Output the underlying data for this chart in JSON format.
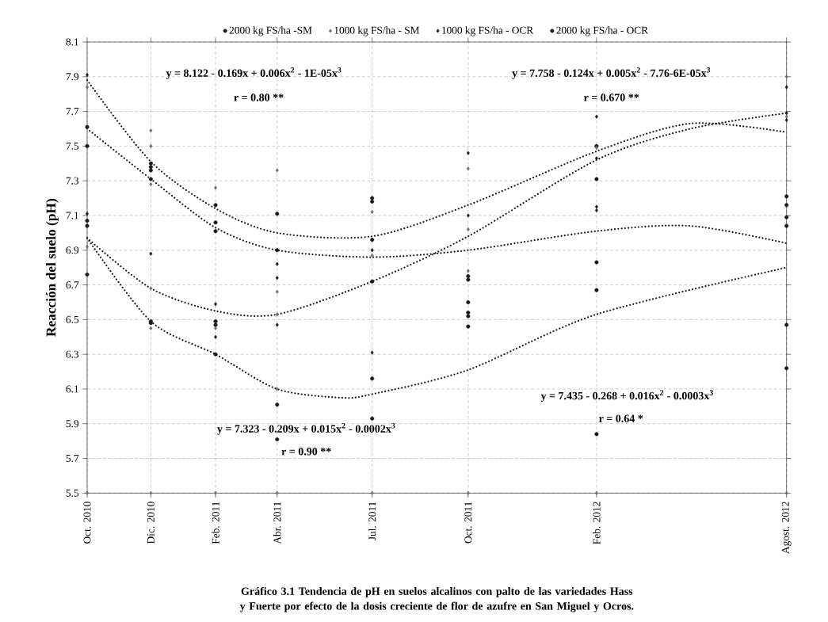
{
  "chart_data": {
    "type": "scatter",
    "ylabel": "Reacción del suelo (pH)",
    "xlim": [
      "2010-10",
      "2012-08"
    ],
    "xticks": [
      {
        "value": "2010-10",
        "label": "Oct. 2010"
      },
      {
        "value": "2010-12",
        "label": "Dic. 2010"
      },
      {
        "value": "2011-02",
        "label": "Feb. 2011"
      },
      {
        "value": "2011-04",
        "label": "Abr. 2011"
      },
      {
        "value": "2011-07",
        "label": "Jul. 2011"
      },
      {
        "value": "2011-10",
        "label": "Oct. 2011"
      },
      {
        "value": "2012-02",
        "label": "Feb. 2012"
      },
      {
        "value": "2012-08",
        "label": "Agost. 2012"
      }
    ],
    "ylim": [
      5.5,
      8.1
    ],
    "yticks": [
      5.5,
      5.7,
      5.9,
      6.1,
      6.3,
      6.5,
      6.7,
      6.9,
      7.1,
      7.3,
      7.5,
      7.7,
      7.9,
      8.1
    ],
    "grid": true,
    "legend": "top",
    "series": [
      {
        "name": "2000 kg FS/ha -SM",
        "marker": "circle",
        "color": "#1a1a1a",
        "x": [
          "2010-10",
          "2010-10",
          "2010-12",
          "2010-12",
          "2010-12",
          "2011-02",
          "2011-02",
          "2011-04",
          "2011-04",
          "2011-07",
          "2011-07",
          "2011-10",
          "2011-10",
          "2012-02",
          "2012-02",
          "2012-08",
          "2012-08"
        ],
        "values": [
          7.61,
          7.5,
          7.4,
          7.38,
          7.36,
          7.16,
          7.06,
          7.11,
          6.9,
          7.2,
          6.96,
          6.75,
          6.73,
          7.5,
          7.31,
          7.21,
          7.16
        ]
      },
      {
        "name": "1000 kg FS/ha - SM",
        "marker": "diamond",
        "color": "#6e6e6e",
        "x": [
          "2010-10",
          "2010-10",
          "2010-12",
          "2010-12",
          "2010-12",
          "2010-12",
          "2010-12",
          "2011-02",
          "2011-02",
          "2011-04",
          "2011-04",
          "2011-04",
          "2011-04",
          "2011-07",
          "2011-07",
          "2011-10",
          "2011-10",
          "2011-10",
          "2012-02",
          "2012-08",
          "2012-08"
        ],
        "values": [
          7.84,
          6.92,
          7.59,
          7.5,
          7.28,
          6.68,
          6.45,
          7.26,
          6.45,
          7.36,
          6.66,
          6.53,
          6.1,
          7.12,
          6.87,
          7.37,
          7.02,
          6.78,
          7.49,
          7.9,
          7.67
        ]
      },
      {
        "name": "1000 kg FS/ha - OCR",
        "marker": "diamond",
        "color": "#1a1a1a",
        "x": [
          "2010-10",
          "2010-10",
          "2010-12",
          "2011-02",
          "2011-02",
          "2011-04",
          "2011-04",
          "2011-04",
          "2011-07",
          "2011-07",
          "2011-10",
          "2011-10",
          "2012-02",
          "2012-02",
          "2012-02",
          "2012-02",
          "2012-08",
          "2012-08",
          "2012-08"
        ],
        "values": [
          7.91,
          7.11,
          6.88,
          6.59,
          6.4,
          6.82,
          6.74,
          6.47,
          6.9,
          6.31,
          7.46,
          7.1,
          7.67,
          7.43,
          7.15,
          7.13,
          7.84,
          7.69,
          7.65
        ]
      },
      {
        "name": "2000 kg FS/ha - OCR",
        "marker": "circle",
        "color": "#1a1a1a",
        "x": [
          "2010-10",
          "2010-10",
          "2010-10",
          "2010-12",
          "2010-12",
          "2010-12",
          "2011-02",
          "2011-02",
          "2011-02",
          "2011-02",
          "2011-04",
          "2011-04",
          "2011-07",
          "2011-07",
          "2011-07",
          "2011-07",
          "2011-10",
          "2011-10",
          "2011-10",
          "2011-10",
          "2012-02",
          "2012-02",
          "2012-02",
          "2012-08",
          "2012-08",
          "2012-08",
          "2012-08"
        ],
        "values": [
          7.07,
          7.04,
          6.76,
          7.31,
          6.49,
          6.48,
          7.01,
          6.49,
          6.47,
          6.3,
          6.01,
          5.81,
          7.18,
          6.72,
          6.16,
          5.93,
          6.6,
          6.54,
          6.52,
          6.46,
          6.83,
          6.67,
          5.84,
          7.09,
          7.04,
          6.47,
          6.22
        ]
      },
      {
        "marker": "diamond",
        "color": "#6e6e6e",
        "x": [
          "2010-10",
          "2010-12",
          "2011-02",
          "2011-04",
          "2011-07",
          "2011-10",
          "2012-02",
          "2012-08"
        ],
        "values": [
          5.5,
          5.5,
          5.5,
          5.5,
          5.5,
          5.5,
          5.5,
          5.5
        ]
      },
      {
        "type": "line",
        "line_style": "dotted",
        "marker": "none",
        "color": "#1a1a1a",
        "x": [
          "2010-10",
          "2010-12",
          "2011-02",
          "2011-04",
          "2011-07",
          "2011-10",
          "2012-02",
          "2012-05",
          "2012-08"
        ],
        "values": [
          7.88,
          7.41,
          7.14,
          7.0,
          6.98,
          7.16,
          7.47,
          7.63,
          7.58
        ]
      },
      {
        "type": "line",
        "line_style": "dotted",
        "marker": "none",
        "color": "#1a1a1a",
        "x": [
          "2010-10",
          "2010-12",
          "2011-02",
          "2011-04",
          "2011-07",
          "2011-10",
          "2012-02",
          "2012-05",
          "2012-08"
        ],
        "values": [
          7.6,
          7.31,
          7.03,
          6.9,
          6.86,
          6.9,
          7.01,
          7.04,
          6.94
        ]
      },
      {
        "type": "line",
        "line_style": "dotted",
        "marker": "none",
        "color": "#1a1a1a",
        "x": [
          "2010-10",
          "2010-12",
          "2011-02",
          "2011-04",
          "2011-07",
          "2011-10",
          "2012-02",
          "2012-05",
          "2012-08"
        ],
        "values": [
          6.97,
          6.68,
          6.55,
          6.53,
          6.72,
          6.98,
          7.42,
          7.6,
          7.69
        ]
      },
      {
        "type": "line",
        "line_style": "dotted",
        "marker": "none",
        "color": "#1a1a1a",
        "x": [
          "2010-10",
          "2010-12",
          "2011-02",
          "2011-04",
          "2011-06",
          "2011-07",
          "2011-10",
          "2012-02",
          "2012-08"
        ],
        "values": [
          6.97,
          6.49,
          6.3,
          6.1,
          6.05,
          6.07,
          6.21,
          6.53,
          6.8
        ]
      }
    ],
    "annotations": [
      "y = 8.122 - 0.169x + 0.006x$^{2}$ - 1E-05x$^{3}$",
      "r = 0.80 **",
      "y = 7.758 - 0.124x + 0.005x$^{2}$ - 7.76-6E-05x$^{3}$",
      "r = 0.670 **",
      "y = 7.435 - 0.268 + 0.016x$^{2}$ - 0.0003x$^{3}$",
      "r = 0.64 *",
      "y = 7.323 - 0.209x + 0.015x$^{2}$ - 0.0002x$^{3}$",
      "r = 0.90 **",
      "Gráfico 3.1 Tendencia de pH en suelos alcalinos con palto de las variedades Hass y Fuerte por efecto de la dosis creciente de flor de azufre en San Miguel y Ocros."
    ]
  }
}
